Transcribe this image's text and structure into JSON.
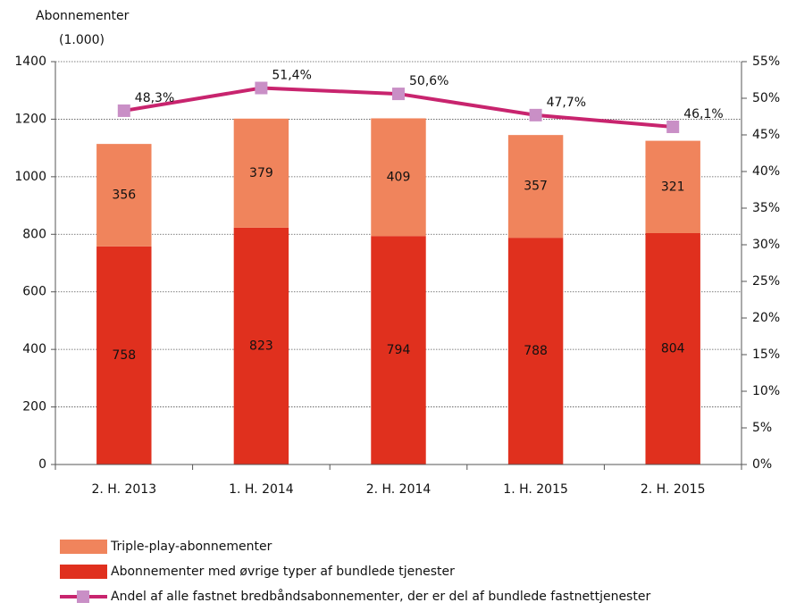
{
  "chart_data": {
    "type": "bar",
    "stacked": true,
    "y_label": [
      "Abonnementer",
      "(1.000)"
    ],
    "categories": [
      "2. H. 2013",
      "1. H. 2014",
      "2. H. 2014",
      "1. H. 2015",
      "2. H. 2015"
    ],
    "series": [
      {
        "name": "Abonnementer med øvrige typer af bundlede tjenester",
        "color": "#e0301e",
        "values": [
          758,
          823,
          794,
          788,
          804
        ]
      },
      {
        "name": "Triple-play-abonnementer",
        "color": "#f0845c",
        "values": [
          356,
          379,
          409,
          357,
          321
        ]
      },
      {
        "name": "Andel af alle fastnet bredbåndsabonnementer, der er del af bundlede fastnettjenester",
        "type": "line",
        "axis": "y2",
        "color": "#c8246e",
        "marker_color": "#c98fc6",
        "values": [
          48.3,
          51.4,
          50.6,
          47.7,
          46.1
        ],
        "value_labels": [
          "48,3%",
          "51,4%",
          "50,6%",
          "47,7%",
          "46,1%"
        ]
      }
    ],
    "legend_order": [
      1,
      0,
      2
    ],
    "ylim": [
      0,
      1400
    ],
    "yticks": [
      0,
      200,
      400,
      600,
      800,
      1000,
      1200,
      1400
    ],
    "y2lim": [
      0,
      55
    ],
    "y2ticks": [
      {
        "value": 0,
        "label": "0%"
      },
      {
        "value": 5,
        "label": "5%"
      },
      {
        "value": 10,
        "label": "10%"
      },
      {
        "value": 15,
        "label": "15%"
      },
      {
        "value": 20,
        "label": "20%"
      },
      {
        "value": 25,
        "label": "25%"
      },
      {
        "value": 30,
        "label": "30%"
      },
      {
        "value": 35,
        "label": "35%"
      },
      {
        "value": 40,
        "label": "40%"
      },
      {
        "value": 45,
        "label": "45%"
      },
      {
        "value": 50,
        "label": "50%"
      },
      {
        "value": 55,
        "label": "55%"
      }
    ],
    "grid": true
  }
}
